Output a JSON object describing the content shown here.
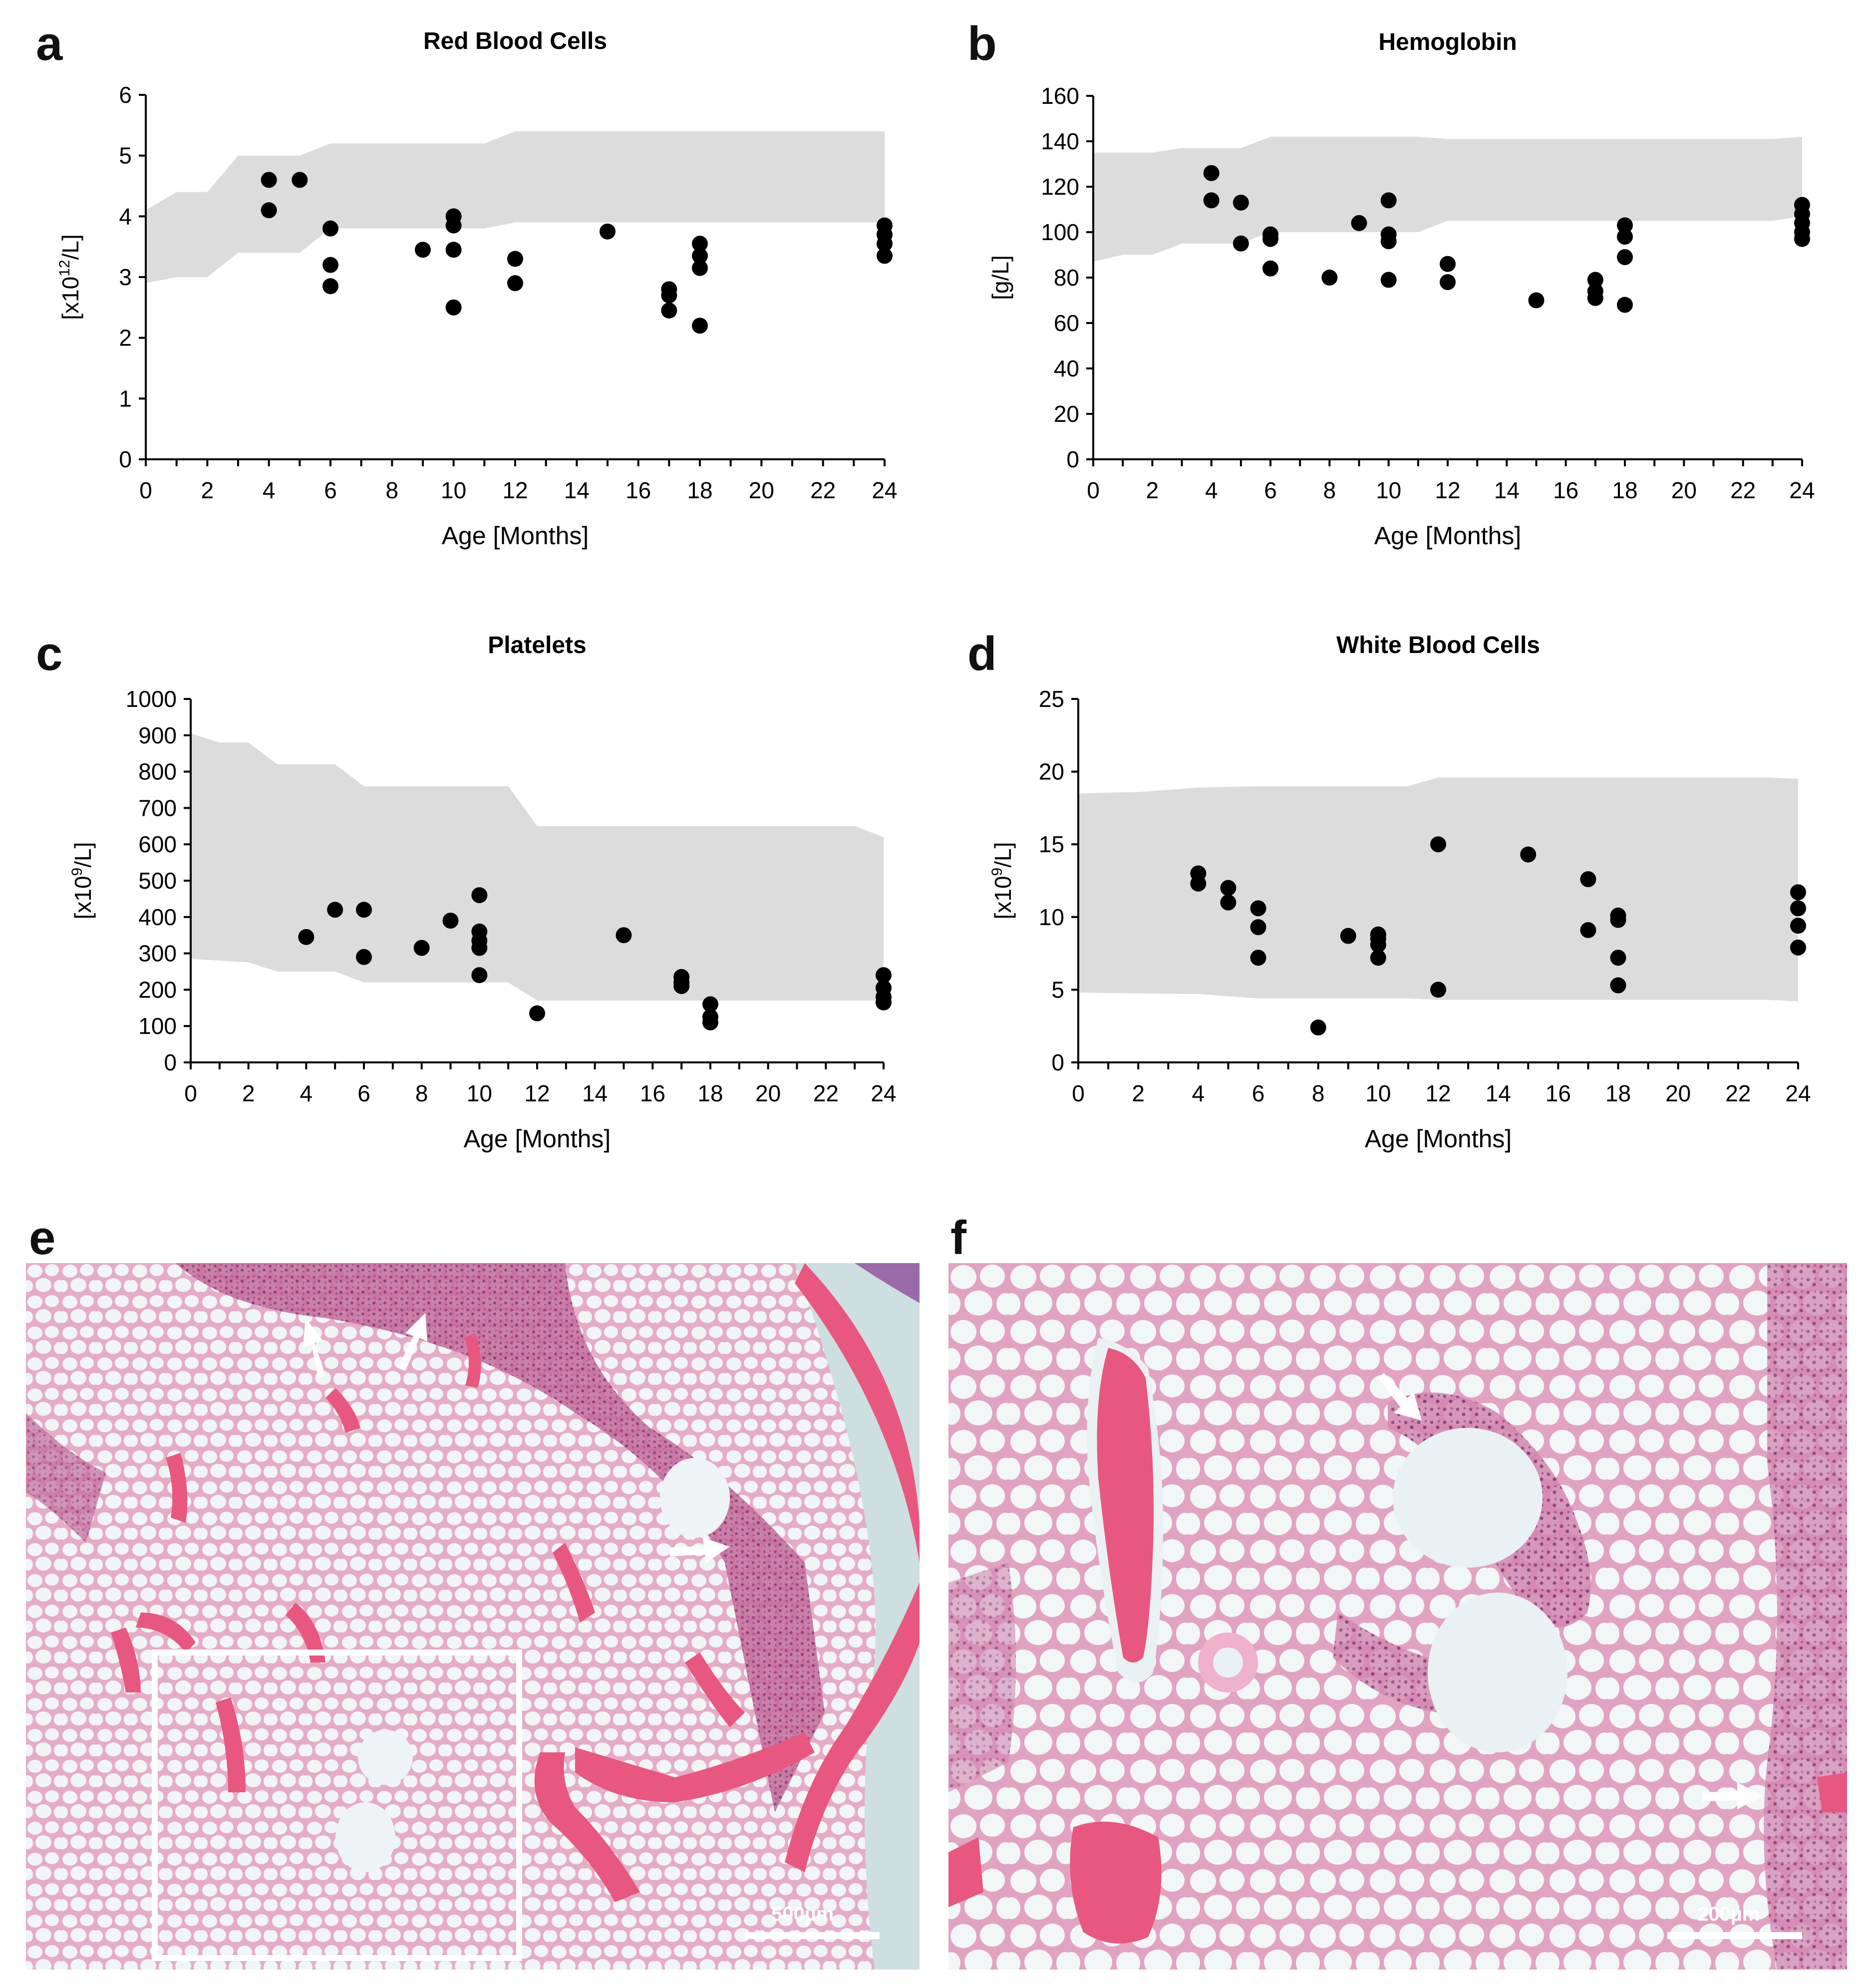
{
  "panels": {
    "a": "a",
    "b": "b",
    "c": "c",
    "d": "d",
    "e": "e",
    "f": "f"
  },
  "colors": {
    "range_band": "#dcdcdc",
    "points": "#000000",
    "tissue_bg": "#cfe0e0",
    "tissue_pink": "#e7a9c6",
    "bone": "#e8577f",
    "marrow": "#a6437d"
  },
  "chart_data": [
    {
      "type": "scatter",
      "panel": "a",
      "title": "Red Blood Cells",
      "xlabel": "Age [Months]",
      "ylabel": "[x10",
      "ylabel_sup": "12",
      "ylabel_tail": "/L]",
      "xlim": [
        0,
        24
      ],
      "ylim": [
        0,
        6
      ],
      "xticks": [
        0,
        2,
        4,
        6,
        8,
        10,
        12,
        14,
        16,
        18,
        20,
        22,
        24
      ],
      "yticks": [
        0,
        1,
        2,
        3,
        4,
        5,
        6
      ],
      "reference_upper": [
        [
          0,
          4.1
        ],
        [
          1,
          4.4
        ],
        [
          2,
          4.4
        ],
        [
          3,
          5.0
        ],
        [
          5,
          5.0
        ],
        [
          6,
          5.2
        ],
        [
          11,
          5.2
        ],
        [
          12,
          5.4
        ],
        [
          23,
          5.4
        ],
        [
          24,
          5.4
        ]
      ],
      "reference_lower": [
        [
          0,
          2.9
        ],
        [
          1,
          3.0
        ],
        [
          2,
          3.0
        ],
        [
          3,
          3.4
        ],
        [
          5,
          3.4
        ],
        [
          6,
          3.8
        ],
        [
          11,
          3.8
        ],
        [
          12,
          3.9
        ],
        [
          23,
          3.9
        ],
        [
          24,
          3.9
        ]
      ],
      "points": [
        [
          4,
          4.6
        ],
        [
          4,
          4.1
        ],
        [
          5,
          4.6
        ],
        [
          6,
          3.8
        ],
        [
          6,
          3.2
        ],
        [
          6,
          2.85
        ],
        [
          9,
          3.45
        ],
        [
          10,
          4.0
        ],
        [
          10,
          3.85
        ],
        [
          10,
          3.45
        ],
        [
          10,
          2.5
        ],
        [
          12,
          3.3
        ],
        [
          12,
          2.9
        ],
        [
          15,
          3.75
        ],
        [
          17,
          2.8
        ],
        [
          17,
          2.7
        ],
        [
          17,
          2.45
        ],
        [
          18,
          3.55
        ],
        [
          18,
          3.35
        ],
        [
          18,
          3.15
        ],
        [
          18,
          2.2
        ],
        [
          24,
          3.85
        ],
        [
          24,
          3.7
        ],
        [
          24,
          3.55
        ],
        [
          24,
          3.35
        ]
      ]
    },
    {
      "type": "scatter",
      "panel": "b",
      "title": "Hemoglobin",
      "xlabel": "Age [Months]",
      "ylabel": "[g/L]",
      "xlim": [
        0,
        24
      ],
      "ylim": [
        0,
        160
      ],
      "xticks": [
        0,
        2,
        4,
        6,
        8,
        10,
        12,
        14,
        16,
        18,
        20,
        22,
        24
      ],
      "yticks": [
        0,
        20,
        40,
        60,
        80,
        100,
        120,
        140,
        160
      ],
      "reference_upper": [
        [
          0,
          135
        ],
        [
          2,
          135
        ],
        [
          3,
          137
        ],
        [
          5,
          137
        ],
        [
          6,
          142
        ],
        [
          11,
          142
        ],
        [
          12,
          141
        ],
        [
          23,
          141
        ],
        [
          24,
          142
        ]
      ],
      "reference_lower": [
        [
          0,
          87
        ],
        [
          1,
          90
        ],
        [
          2,
          90
        ],
        [
          3,
          95
        ],
        [
          5,
          95
        ],
        [
          6,
          100
        ],
        [
          11,
          100
        ],
        [
          12,
          105
        ],
        [
          23,
          105
        ],
        [
          24,
          107
        ]
      ],
      "points": [
        [
          4,
          126
        ],
        [
          4,
          114
        ],
        [
          5,
          113
        ],
        [
          5,
          95
        ],
        [
          6,
          99
        ],
        [
          6,
          97
        ],
        [
          6,
          84
        ],
        [
          8,
          80
        ],
        [
          9,
          104
        ],
        [
          10,
          114
        ],
        [
          10,
          99
        ],
        [
          10,
          96
        ],
        [
          10,
          79
        ],
        [
          12,
          86
        ],
        [
          12,
          78
        ],
        [
          15,
          70
        ],
        [
          17,
          79
        ],
        [
          17,
          74
        ],
        [
          17,
          71
        ],
        [
          18,
          103
        ],
        [
          18,
          98
        ],
        [
          18,
          89
        ],
        [
          18,
          68
        ],
        [
          24,
          112
        ],
        [
          24,
          108
        ],
        [
          24,
          104
        ],
        [
          24,
          100
        ],
        [
          24,
          97
        ]
      ]
    },
    {
      "type": "scatter",
      "panel": "c",
      "title": "Platelets",
      "xlabel": "Age [Months]",
      "ylabel": "[x10",
      "ylabel_sup": "9",
      "ylabel_tail": "/L]",
      "xlim": [
        0,
        24
      ],
      "ylim": [
        0,
        1000
      ],
      "xticks": [
        0,
        2,
        4,
        6,
        8,
        10,
        12,
        14,
        16,
        18,
        20,
        22,
        24
      ],
      "yticks": [
        0,
        100,
        200,
        300,
        400,
        500,
        600,
        700,
        800,
        900,
        1000
      ],
      "reference_upper": [
        [
          0,
          905
        ],
        [
          1,
          880
        ],
        [
          2,
          880
        ],
        [
          3,
          820
        ],
        [
          5,
          820
        ],
        [
          6,
          760
        ],
        [
          11,
          760
        ],
        [
          12,
          650
        ],
        [
          23,
          650
        ],
        [
          24,
          620
        ]
      ],
      "reference_lower": [
        [
          0,
          285
        ],
        [
          2,
          275
        ],
        [
          3,
          250
        ],
        [
          5,
          250
        ],
        [
          6,
          220
        ],
        [
          11,
          220
        ],
        [
          12,
          170
        ],
        [
          23,
          170
        ],
        [
          24,
          170
        ]
      ],
      "points": [
        [
          4,
          345
        ],
        [
          5,
          420
        ],
        [
          6,
          420
        ],
        [
          6,
          290
        ],
        [
          8,
          315
        ],
        [
          9,
          390
        ],
        [
          10,
          460
        ],
        [
          10,
          360
        ],
        [
          10,
          335
        ],
        [
          10,
          315
        ],
        [
          10,
          240
        ],
        [
          12,
          135
        ],
        [
          15,
          350
        ],
        [
          17,
          235
        ],
        [
          17,
          220
        ],
        [
          17,
          210
        ],
        [
          18,
          160
        ],
        [
          18,
          125
        ],
        [
          18,
          110
        ],
        [
          24,
          240
        ],
        [
          24,
          205
        ],
        [
          24,
          180
        ],
        [
          24,
          165
        ]
      ]
    },
    {
      "type": "scatter",
      "panel": "d",
      "title": "White Blood Cells",
      "xlabel": "Age [Months]",
      "ylabel": "[x10",
      "ylabel_sup": "9",
      "ylabel_tail": "/L]",
      "xlim": [
        0,
        24
      ],
      "ylim": [
        0,
        25
      ],
      "xticks": [
        0,
        2,
        4,
        6,
        8,
        10,
        12,
        14,
        16,
        18,
        20,
        22,
        24
      ],
      "yticks": [
        0,
        5,
        10,
        15,
        20,
        25
      ],
      "reference_upper": [
        [
          0,
          18.5
        ],
        [
          2,
          18.6
        ],
        [
          4,
          18.9
        ],
        [
          6,
          19.0
        ],
        [
          11,
          19.0
        ],
        [
          12,
          19.6
        ],
        [
          23,
          19.6
        ],
        [
          24,
          19.5
        ]
      ],
      "reference_lower": [
        [
          0,
          4.8
        ],
        [
          4,
          4.7
        ],
        [
          6,
          4.4
        ],
        [
          11,
          4.4
        ],
        [
          12,
          4.3
        ],
        [
          23,
          4.3
        ],
        [
          24,
          4.2
        ]
      ],
      "points": [
        [
          4,
          13.0
        ],
        [
          4,
          12.3
        ],
        [
          5,
          12.0
        ],
        [
          5,
          11.0
        ],
        [
          6,
          10.6
        ],
        [
          6,
          9.3
        ],
        [
          6,
          7.2
        ],
        [
          8,
          2.4
        ],
        [
          9,
          8.7
        ],
        [
          10,
          8.8
        ],
        [
          10,
          8.5
        ],
        [
          10,
          8.1
        ],
        [
          10,
          7.2
        ],
        [
          12,
          15.0
        ],
        [
          12,
          5.0
        ],
        [
          15,
          14.3
        ],
        [
          17,
          12.6
        ],
        [
          17,
          9.1
        ],
        [
          18,
          10.1
        ],
        [
          18,
          9.8
        ],
        [
          18,
          7.2
        ],
        [
          18,
          5.3
        ],
        [
          24,
          11.7
        ],
        [
          24,
          10.6
        ],
        [
          24,
          9.4
        ],
        [
          24,
          7.9
        ]
      ]
    }
  ],
  "micrographs": {
    "e": {
      "scale_bar": "500µm"
    },
    "f": {
      "scale_bar": "200µm"
    }
  }
}
